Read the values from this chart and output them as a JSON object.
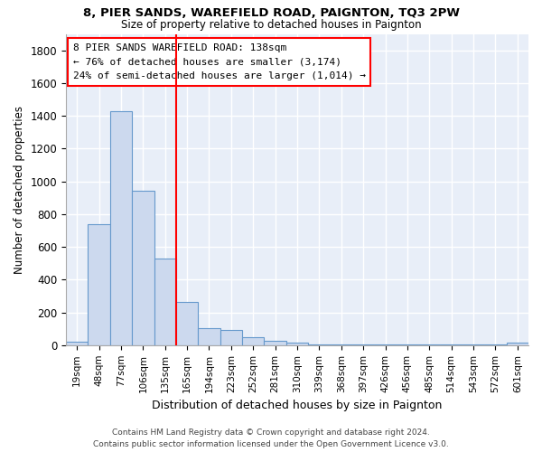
{
  "title": "8, PIER SANDS, WAREFIELD ROAD, PAIGNTON, TQ3 2PW",
  "subtitle": "Size of property relative to detached houses in Paignton",
  "xlabel": "Distribution of detached houses by size in Paignton",
  "ylabel": "Number of detached properties",
  "bar_labels": [
    "19sqm",
    "48sqm",
    "77sqm",
    "106sqm",
    "135sqm",
    "165sqm",
    "194sqm",
    "223sqm",
    "252sqm",
    "281sqm",
    "310sqm",
    "339sqm",
    "368sqm",
    "397sqm",
    "426sqm",
    "456sqm",
    "485sqm",
    "514sqm",
    "543sqm",
    "572sqm",
    "601sqm"
  ],
  "bar_values": [
    20,
    740,
    1430,
    940,
    530,
    265,
    105,
    95,
    50,
    25,
    15,
    5,
    5,
    5,
    5,
    5,
    5,
    5,
    5,
    5,
    15
  ],
  "bar_color": "#ccd9ee",
  "bar_edge_color": "#6699cc",
  "vline_color": "red",
  "annotation_text": "8 PIER SANDS WAREFIELD ROAD: 138sqm\n← 76% of detached houses are smaller (3,174)\n24% of semi-detached houses are larger (1,014) →",
  "annotation_box_color": "white",
  "annotation_box_edge": "red",
  "ylim": [
    0,
    1900
  ],
  "yticks": [
    0,
    200,
    400,
    600,
    800,
    1000,
    1200,
    1400,
    1600,
    1800
  ],
  "footer_line1": "Contains HM Land Registry data © Crown copyright and database right 2024.",
  "footer_line2": "Contains public sector information licensed under the Open Government Licence v3.0.",
  "plot_bg_color": "#e8eef8",
  "fig_bg_color": "#ffffff",
  "grid_color": "#ffffff"
}
